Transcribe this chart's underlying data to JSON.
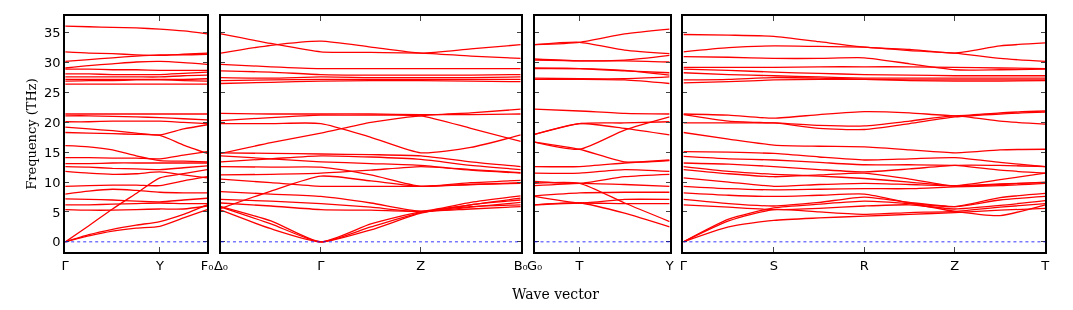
{
  "chart_data": [
    {
      "type": "line",
      "ylabel": "Frequency (THz)",
      "categories": [
        "Γ",
        null,
        null,
        null,
        "Y",
        null,
        "F₀"
      ],
      "ylim": [
        -1.7,
        37.8
      ],
      "yticks": [
        0,
        5,
        10,
        15,
        20,
        25,
        30,
        35
      ],
      "ref_lines": [
        {
          "axis": "y",
          "value": 0,
          "label": null,
          "color": "#0000ff",
          "line_style": "dotted"
        }
      ],
      "series": [
        {
          "color": "#ff0000",
          "values": [
            36.1,
            36.0,
            35.9,
            35.8,
            35.6,
            35.3,
            34.8
          ]
        },
        {
          "color": "#ff0000",
          "values": [
            31.8,
            31.6,
            31.5,
            31.3,
            31.2,
            31.4,
            31.6
          ]
        },
        {
          "color": "#ff0000",
          "values": [
            30.2,
            30.5,
            30.8,
            31.1,
            31.3,
            31.3,
            31.4
          ]
        },
        {
          "color": "#ff0000",
          "values": [
            29.1,
            29.5,
            29.8,
            30.1,
            30.2,
            30.0,
            29.7
          ]
        },
        {
          "color": "#ff0000",
          "values": [
            28.9,
            28.9,
            28.8,
            28.8,
            28.7,
            28.7,
            28.7
          ]
        },
        {
          "color": "#ff0000",
          "values": [
            28.1,
            28.1,
            28.0,
            28.0,
            28.0,
            28.2,
            28.4
          ]
        },
        {
          "color": "#ff0000",
          "values": [
            27.6,
            27.6,
            27.6,
            27.6,
            27.6,
            27.8,
            27.9
          ]
        },
        {
          "color": "#ff0000",
          "values": [
            27.2,
            27.2,
            27.2,
            27.2,
            27.2,
            27.2,
            27.3
          ]
        },
        {
          "color": "#ff0000",
          "values": [
            26.9,
            27.0,
            27.0,
            27.1,
            27.1,
            27.0,
            26.9
          ]
        },
        {
          "color": "#ff0000",
          "values": [
            26.4,
            26.4,
            26.4,
            26.4,
            26.4,
            26.4,
            26.4
          ]
        },
        {
          "color": "#ff0000",
          "values": [
            21.4,
            21.4,
            21.4,
            21.4,
            21.4,
            21.4,
            21.4
          ]
        },
        {
          "color": "#ff0000",
          "values": [
            21.1,
            21.1,
            21.0,
            20.9,
            20.8,
            20.6,
            20.4
          ]
        },
        {
          "color": "#ff0000",
          "values": [
            20.1,
            20.1,
            20.2,
            20.2,
            20.2,
            20.0,
            19.8
          ]
        },
        {
          "color": "#ff0000",
          "values": [
            19.2,
            18.9,
            18.6,
            18.2,
            17.9,
            18.9,
            19.6
          ]
        },
        {
          "color": "#ff0000",
          "values": [
            18.3,
            18.2,
            18.1,
            18.0,
            17.8,
            16.2,
            14.8
          ]
        },
        {
          "color": "#ff0000",
          "values": [
            16.1,
            15.9,
            15.4,
            14.4,
            13.6,
            13.5,
            13.4
          ]
        },
        {
          "color": "#ff0000",
          "values": [
            14.1,
            14.1,
            14.0,
            14.0,
            13.9,
            14.5,
            15.1
          ]
        },
        {
          "color": "#ff0000",
          "values": [
            13.1,
            13.1,
            13.2,
            13.2,
            13.2,
            13.2,
            13.2
          ]
        },
        {
          "color": "#ff0000",
          "values": [
            12.6,
            12.5,
            12.3,
            12.2,
            12.1,
            12.4,
            12.7
          ]
        },
        {
          "color": "#ff0000",
          "values": [
            11.8,
            11.5,
            11.3,
            11.4,
            11.7,
            11.2,
            10.7
          ]
        },
        {
          "color": "#ff0000",
          "values": [
            9.3,
            9.4,
            9.5,
            9.5,
            9.4,
            10.2,
            10.9
          ]
        },
        {
          "color": "#ff0000",
          "values": [
            8.0,
            8.5,
            8.8,
            8.6,
            8.3,
            8.2,
            8.2
          ]
        },
        {
          "color": "#ff0000",
          "values": [
            7.2,
            7.1,
            7.0,
            6.8,
            6.7,
            7.0,
            7.3
          ]
        },
        {
          "color": "#ff0000",
          "values": [
            6.2,
            6.2,
            6.3,
            6.4,
            6.5,
            6.4,
            6.4
          ]
        },
        {
          "color": "#ff0000",
          "values": [
            5.4,
            5.3,
            5.3,
            5.4,
            5.5,
            5.5,
            6.0
          ]
        },
        {
          "color": "#ff0000",
          "values": [
            0,
            2.7,
            5.5,
            8.1,
            10.7,
            11.4,
            12.1
          ]
        },
        {
          "color": "#ff0000",
          "values": [
            0,
            1.2,
            2.1,
            2.8,
            3.4,
            4.6,
            6.2
          ]
        },
        {
          "color": "#ff0000",
          "values": [
            0,
            1.0,
            1.8,
            2.3,
            2.6,
            4.0,
            5.4
          ]
        }
      ]
    },
    {
      "type": "line",
      "tick_labels": "x",
      "categories": [
        "Δ₀",
        null,
        "Γ",
        null,
        "Z",
        null,
        "B₀"
      ],
      "ylim": [
        -1.7,
        37.8
      ],
      "yticks": [
        0,
        5,
        10,
        15,
        20,
        25,
        30,
        35
      ],
      "ref_lines": [
        {
          "axis": "y",
          "value": 0,
          "label": null,
          "color": "#0000ff",
          "line_style": "dotted"
        }
      ],
      "series": [
        {
          "color": "#ff0000",
          "values": [
            34.8,
            33.2,
            31.8,
            31.7,
            31.6,
            31.1,
            30.7
          ]
        },
        {
          "color": "#ff0000",
          "values": [
            31.6,
            32.9,
            33.6,
            32.6,
            31.6,
            32.3,
            33.0
          ]
        },
        {
          "color": "#ff0000",
          "values": [
            29.7,
            29.3,
            29.0,
            29.0,
            29.0,
            29.0,
            29.0
          ]
        },
        {
          "color": "#ff0000",
          "values": [
            28.6,
            28.4,
            28.0,
            27.9,
            27.9,
            27.9,
            28.0
          ]
        },
        {
          "color": "#ff0000",
          "values": [
            27.5,
            27.4,
            27.6,
            27.5,
            27.5,
            27.5,
            27.6
          ]
        },
        {
          "color": "#ff0000",
          "values": [
            27.0,
            27.1,
            27.2,
            27.2,
            27.2,
            27.2,
            27.2
          ]
        },
        {
          "color": "#ff0000",
          "values": [
            26.5,
            26.7,
            26.9,
            27.0,
            27.0,
            26.9,
            26.8
          ]
        },
        {
          "color": "#ff0000",
          "values": [
            21.5,
            21.4,
            21.4,
            21.4,
            21.3,
            21.3,
            21.4
          ]
        },
        {
          "color": "#ff0000",
          "values": [
            20.3,
            20.8,
            21.2,
            21.2,
            21.1,
            19.0,
            16.8
          ]
        },
        {
          "color": "#ff0000",
          "values": [
            19.8,
            19.8,
            19.8,
            17.5,
            14.9,
            15.8,
            17.9
          ]
        },
        {
          "color": "#ff0000",
          "values": [
            14.8,
            16.6,
            18.2,
            20.0,
            21.1,
            21.6,
            22.2
          ]
        },
        {
          "color": "#ff0000",
          "values": [
            14.9,
            14.8,
            14.7,
            14.6,
            14.4,
            13.4,
            12.6
          ]
        },
        {
          "color": "#ff0000",
          "values": [
            14.4,
            13.9,
            13.4,
            13.1,
            12.8,
            12.0,
            11.5
          ]
        },
        {
          "color": "#ff0000",
          "values": [
            13.4,
            13.9,
            14.4,
            14.2,
            13.8,
            12.8,
            12.1
          ]
        },
        {
          "color": "#ff0000",
          "values": [
            12.6,
            12.5,
            12.5,
            11.2,
            9.3,
            9.9,
            10.3
          ]
        },
        {
          "color": "#ff0000",
          "values": [
            11.2,
            11.3,
            11.5,
            12.0,
            12.6,
            12.1,
            11.6
          ]
        },
        {
          "color": "#ff0000",
          "values": [
            10.5,
            9.9,
            9.3,
            9.3,
            9.3,
            9.6,
            9.8
          ]
        },
        {
          "color": "#ff0000",
          "values": [
            8.4,
            8.0,
            7.6,
            6.5,
            5.1,
            5.8,
            6.6
          ]
        },
        {
          "color": "#ff0000",
          "values": [
            7.1,
            6.8,
            6.4,
            5.8,
            5.1,
            6.6,
            7.7
          ]
        },
        {
          "color": "#ff0000",
          "values": [
            6.5,
            6.0,
            5.4,
            5.3,
            5.1,
            5.5,
            5.9
          ]
        },
        {
          "color": "#ff0000",
          "values": [
            5.6,
            8.5,
            11.0,
            10.2,
            9.3,
            9.6,
            9.9
          ]
        },
        {
          "color": "#ff0000",
          "values": [
            5.9,
            3.5,
            0,
            3.0,
            5.0,
            5.9,
            6.2
          ]
        },
        {
          "color": "#ff0000",
          "values": [
            5.8,
            3.0,
            0,
            2.5,
            4.9,
            6.2,
            7.3
          ]
        },
        {
          "color": "#ff0000",
          "values": [
            5.3,
            2.2,
            0,
            2.0,
            4.8,
            6.2,
            7.0
          ]
        }
      ]
    },
    {
      "type": "line",
      "tick_labels": "x",
      "categories": [
        "G₀",
        "T",
        null,
        "Y"
      ],
      "ylim": [
        -1.7,
        37.8
      ],
      "yticks": [
        0,
        5,
        10,
        15,
        20,
        25,
        30,
        35
      ],
      "ref_lines": [
        {
          "axis": "y",
          "value": 0,
          "label": null,
          "color": "#0000ff",
          "line_style": "dotted"
        }
      ],
      "series": [
        {
          "color": "#ff0000",
          "values": [
            33.0,
            33.4,
            34.8,
            35.6
          ]
        },
        {
          "color": "#ff0000",
          "values": [
            33.0,
            33.4,
            32.1,
            31.5
          ]
        },
        {
          "color": "#ff0000",
          "values": [
            30.6,
            30.3,
            30.4,
            31.2
          ]
        },
        {
          "color": "#ff0000",
          "values": [
            30.4,
            30.3,
            30.3,
            30.1
          ]
        },
        {
          "color": "#ff0000",
          "values": [
            29.1,
            29.0,
            28.6,
            28.3
          ]
        },
        {
          "color": "#ff0000",
          "values": [
            29.0,
            29.0,
            28.7,
            27.9
          ]
        },
        {
          "color": "#ff0000",
          "values": [
            27.4,
            27.3,
            27.3,
            27.6
          ]
        },
        {
          "color": "#ff0000",
          "values": [
            27.2,
            27.2,
            27.1,
            26.5
          ]
        },
        {
          "color": "#ff0000",
          "values": [
            22.2,
            21.9,
            21.5,
            21.4
          ]
        },
        {
          "color": "#ff0000",
          "values": [
            18.0,
            19.8,
            19.9,
            20.1
          ]
        },
        {
          "color": "#ff0000",
          "values": [
            18.0,
            19.8,
            19.0,
            17.9
          ]
        },
        {
          "color": "#ff0000",
          "values": [
            16.7,
            15.5,
            18.7,
            20.9
          ]
        },
        {
          "color": "#ff0000",
          "values": [
            16.7,
            15.5,
            13.4,
            13.6
          ]
        },
        {
          "color": "#ff0000",
          "values": [
            12.6,
            12.6,
            13.2,
            13.7
          ]
        },
        {
          "color": "#ff0000",
          "values": [
            11.5,
            11.5,
            12.1,
            11.8
          ]
        },
        {
          "color": "#ff0000",
          "values": [
            10.1,
            9.8,
            10.9,
            11.3
          ]
        },
        {
          "color": "#ff0000",
          "values": [
            9.4,
            9.8,
            9.6,
            9.3
          ]
        },
        {
          "color": "#ff0000",
          "values": [
            7.7,
            8.2,
            8.3,
            8.3
          ]
        },
        {
          "color": "#ff0000",
          "values": [
            7.6,
            6.5,
            7.1,
            7.1
          ]
        },
        {
          "color": "#ff0000",
          "values": [
            6.2,
            6.5,
            6.4,
            6.4
          ]
        },
        {
          "color": "#ff0000",
          "values": [
            9.8,
            9.8,
            6.5,
            3.4
          ]
        },
        {
          "color": "#ff0000",
          "values": [
            6.2,
            6.5,
            4.8,
            2.5
          ]
        }
      ]
    },
    {
      "type": "line",
      "tick_labels": "x",
      "xlabel": "Wave vector",
      "categories": [
        "Γ",
        null,
        "S",
        null,
        "R",
        null,
        "Z",
        null,
        "T"
      ],
      "ylim": [
        -1.7,
        37.8
      ],
      "yticks": [
        0,
        5,
        10,
        15,
        20,
        25,
        30,
        35
      ],
      "ref_lines": [
        {
          "axis": "y",
          "value": 0,
          "label": null,
          "color": "#0000ff",
          "line_style": "dotted"
        }
      ],
      "series": [
        {
          "color": "#ff0000",
          "values": [
            34.7,
            34.6,
            34.4,
            33.5,
            32.6,
            32.2,
            31.6,
            32.8,
            33.3
          ]
        },
        {
          "color": "#ff0000",
          "values": [
            31.8,
            32.5,
            32.8,
            32.7,
            32.6,
            32.0,
            31.6,
            30.7,
            30.2
          ]
        },
        {
          "color": "#ff0000",
          "values": [
            31.0,
            30.9,
            30.7,
            30.7,
            30.8,
            29.8,
            28.8,
            28.8,
            28.9
          ]
        },
        {
          "color": "#ff0000",
          "values": [
            29.2,
            29.2,
            29.2,
            29.3,
            29.3,
            29.3,
            29.2,
            29.1,
            29.0
          ]
        },
        {
          "color": "#ff0000",
          "values": [
            28.9,
            28.7,
            28.4,
            28.2,
            28.0,
            27.9,
            27.8,
            27.8,
            27.8
          ]
        },
        {
          "color": "#ff0000",
          "values": [
            28.3,
            28.0,
            27.8,
            27.6,
            27.4,
            27.4,
            27.4,
            27.4,
            27.4
          ]
        },
        {
          "color": "#ff0000",
          "values": [
            27.1,
            27.2,
            27.5,
            27.4,
            27.2,
            27.1,
            27.1,
            27.1,
            27.1
          ]
        },
        {
          "color": "#ff0000",
          "values": [
            26.6,
            26.8,
            27.1,
            27.2,
            27.2,
            27.0,
            26.9,
            26.9,
            27.0
          ]
        },
        {
          "color": "#ff0000",
          "values": [
            21.4,
            21.2,
            20.7,
            21.3,
            21.8,
            21.6,
            21.1,
            21.6,
            21.9
          ]
        },
        {
          "color": "#ff0000",
          "values": [
            21.3,
            20.2,
            19.9,
            19.5,
            19.4,
            20.2,
            21.1,
            20.2,
            19.7
          ]
        },
        {
          "color": "#ff0000",
          "values": [
            19.9,
            19.9,
            19.9,
            19.0,
            18.8,
            19.8,
            20.9,
            21.4,
            21.7
          ]
        },
        {
          "color": "#ff0000",
          "values": [
            18.3,
            17.2,
            16.2,
            16.0,
            15.9,
            15.4,
            14.9,
            15.4,
            15.5
          ]
        },
        {
          "color": "#ff0000",
          "values": [
            15.1,
            15.0,
            14.8,
            14.2,
            13.7,
            13.9,
            14.1,
            13.3,
            12.6
          ]
        },
        {
          "color": "#ff0000",
          "values": [
            14.3,
            13.9,
            13.7,
            13.3,
            12.9,
            12.9,
            12.8,
            12.0,
            11.5
          ]
        },
        {
          "color": "#ff0000",
          "values": [
            13.2,
            13.0,
            12.6,
            12.1,
            11.7,
            12.2,
            12.8,
            12.8,
            12.6
          ]
        },
        {
          "color": "#ff0000",
          "values": [
            12.6,
            11.8,
            11.3,
            11.0,
            10.6,
            10.0,
            9.4,
            10.4,
            11.5
          ]
        },
        {
          "color": "#ff0000",
          "values": [
            12.1,
            11.4,
            10.9,
            11.2,
            11.5,
            10.5,
            9.3,
            9.6,
            10.0
          ]
        },
        {
          "color": "#ff0000",
          "values": [
            10.7,
            10.0,
            9.3,
            9.6,
            9.8,
            9.6,
            9.4,
            9.7,
            9.9
          ]
        },
        {
          "color": "#ff0000",
          "values": [
            9.3,
            8.9,
            8.7,
            8.8,
            8.9,
            8.9,
            9.2,
            9.4,
            9.8
          ]
        },
        {
          "color": "#ff0000",
          "values": [
            8.2,
            7.8,
            7.6,
            7.8,
            8.0,
            6.5,
            5.1,
            4.4,
            6.2
          ]
        },
        {
          "color": "#ff0000",
          "values": [
            7.1,
            6.4,
            6.0,
            6.6,
            7.5,
            6.6,
            5.9,
            7.0,
            7.6
          ]
        },
        {
          "color": "#ff0000",
          "values": [
            6.2,
            5.8,
            5.4,
            5.6,
            6.0,
            6.2,
            5.5,
            6.1,
            6.9
          ]
        },
        {
          "color": "#ff0000",
          "values": [
            0,
            2.5,
            3.6,
            4.0,
            4.3,
            4.6,
            4.9,
            5.3,
            5.6
          ]
        },
        {
          "color": "#ff0000",
          "values": [
            0,
            3.5,
            5.4,
            5.0,
            4.6,
            4.9,
            5.1,
            5.8,
            6.4
          ]
        },
        {
          "color": "#ff0000",
          "values": [
            0,
            3.8,
            5.7,
            6.3,
            6.8,
            6.4,
            5.9,
            7.4,
            8.1
          ]
        }
      ]
    }
  ]
}
